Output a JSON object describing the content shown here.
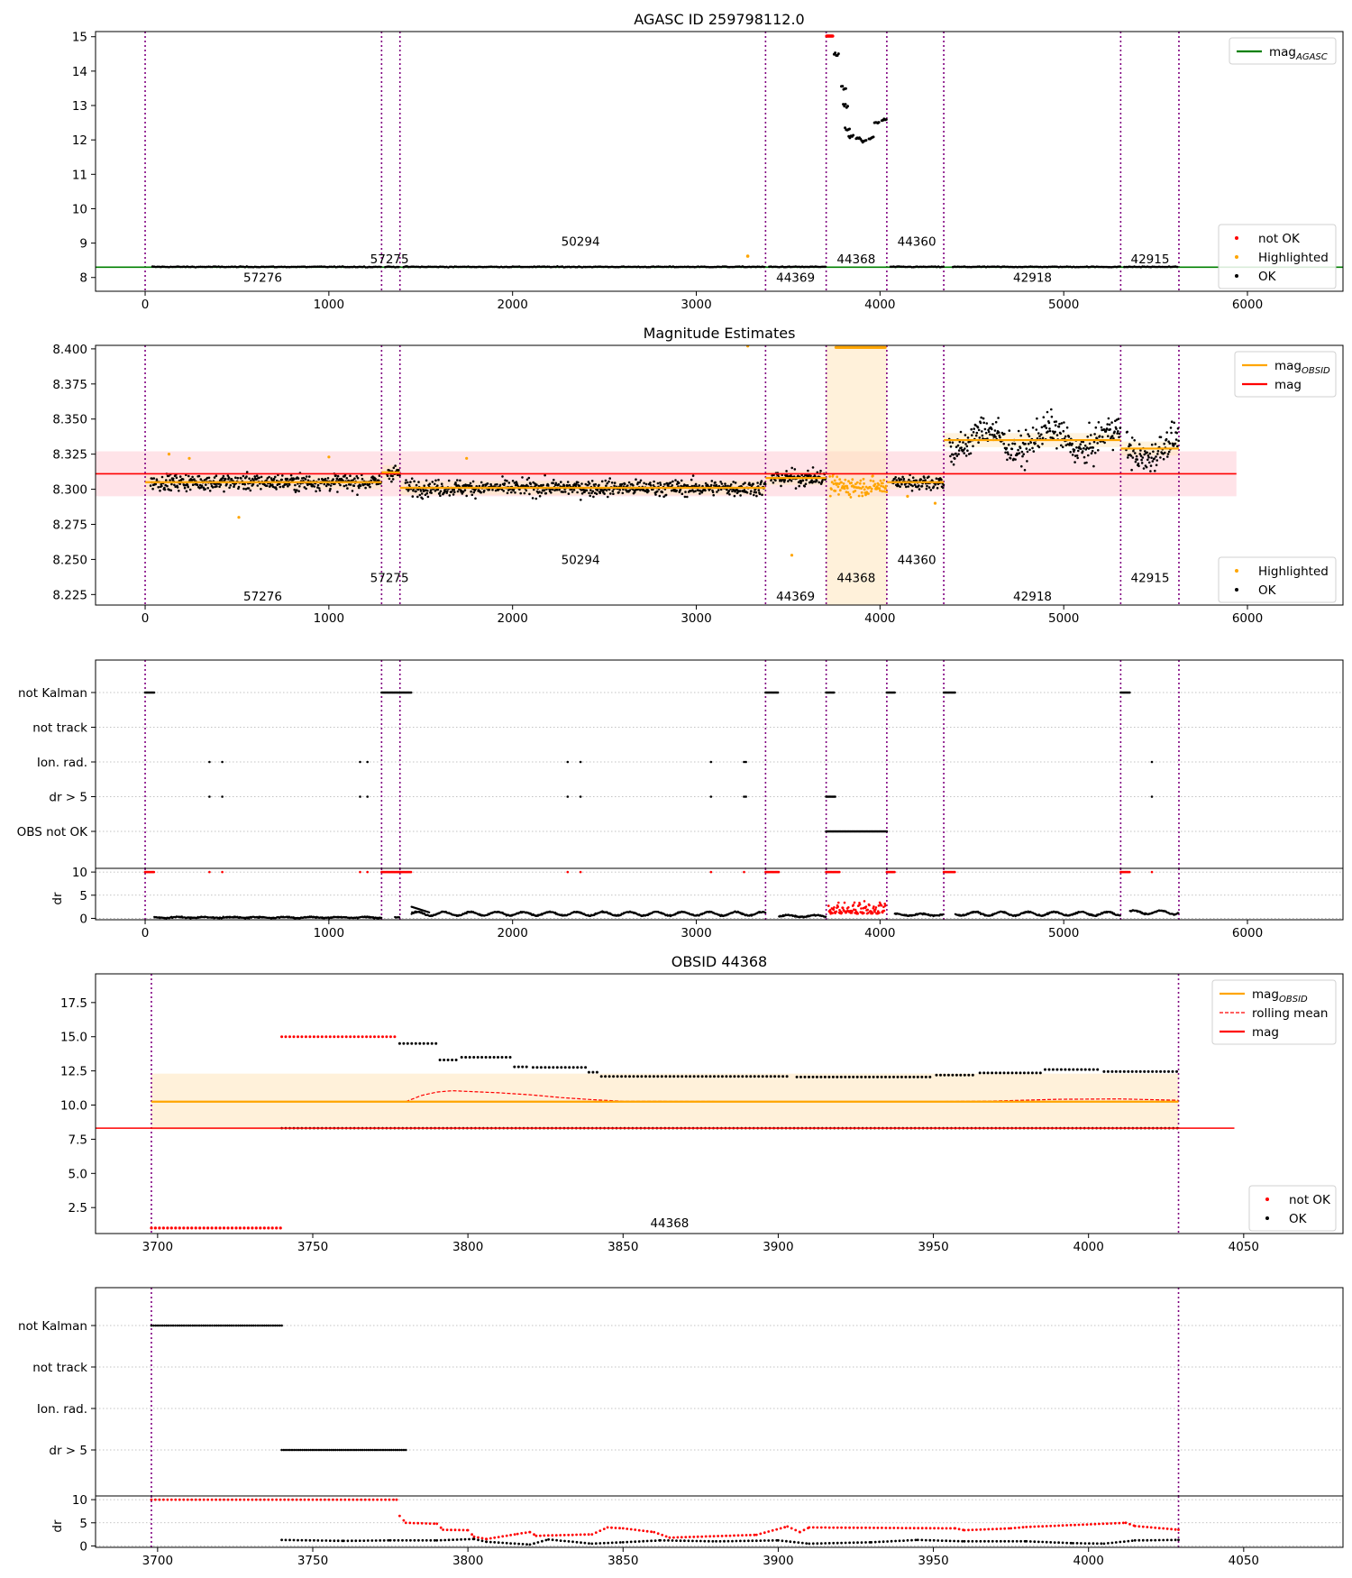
{
  "figure_title": "AGASC ID 259798112.0",
  "colors": {
    "ok": "#000000",
    "not_ok": "#ff0000",
    "highlighted": "#ffa500",
    "mag_agasc": "#008000",
    "mag_obsid": "#ffa500",
    "mag": "#ff0000",
    "rolling_mean": "#ff0000",
    "obs_boundary": "#800080",
    "mag_band": "#ffc0cb",
    "obsid_band": "#ffe4b5"
  },
  "chart_data": [
    {
      "id": "p1",
      "type": "scatter",
      "title": "AGASC ID 259798112.0",
      "xlim": [
        -270,
        6520
      ],
      "ylim": [
        7.6,
        15.15
      ],
      "xticks": [
        0,
        1000,
        2000,
        3000,
        4000,
        5000,
        6000
      ],
      "yticks": [
        8,
        9,
        10,
        11,
        12,
        13,
        14,
        15
      ],
      "obs_boundaries": [
        0,
        1287,
        1387,
        3377,
        3707,
        4037,
        4347,
        5310,
        5627
      ],
      "obsid_labels": [
        {
          "text": "57276",
          "x": 640,
          "y": 8.0
        },
        {
          "text": "57275",
          "x": 1330,
          "y": 8.55
        },
        {
          "text": "50294",
          "x": 2370,
          "y": 9.05
        },
        {
          "text": "44369",
          "x": 3540,
          "y": 8.0
        },
        {
          "text": "44368",
          "x": 3870,
          "y": 8.55
        },
        {
          "text": "44360",
          "x": 4200,
          "y": 9.05
        },
        {
          "text": "42918",
          "x": 4830,
          "y": 8.0
        },
        {
          "text": "42915",
          "x": 5470,
          "y": 8.55
        }
      ],
      "mag_agasc": 8.3,
      "legend_top": [
        {
          "label": "mag",
          "sub": "AGASC",
          "kind": "line",
          "color": "#008000"
        }
      ],
      "legend_bottom": [
        {
          "label": "not OK",
          "kind": "dot",
          "color": "#ff0000"
        },
        {
          "label": "Highlighted",
          "kind": "dot",
          "color": "#ffa500"
        },
        {
          "label": "OK",
          "kind": "dot",
          "color": "#000000"
        }
      ]
    },
    {
      "id": "p2",
      "type": "scatter",
      "title": "Magnitude Estimates",
      "xlim": [
        -270,
        6520
      ],
      "ylim": [
        8.2175,
        8.4025
      ],
      "xticks": [
        0,
        1000,
        2000,
        3000,
        4000,
        5000,
        6000
      ],
      "yticks": [
        8.225,
        8.25,
        8.275,
        8.3,
        8.325,
        8.35,
        8.375,
        8.4
      ],
      "ytick_labels": [
        "8.225",
        "8.250",
        "8.275",
        "8.300",
        "8.325",
        "8.350",
        "8.375",
        "8.400"
      ],
      "obs_boundaries": [
        0,
        1287,
        1387,
        3377,
        3707,
        4037,
        4347,
        5310,
        5627
      ],
      "obsid_labels": [
        {
          "text": "57276",
          "x": 640,
          "y": 8.224
        },
        {
          "text": "57275",
          "x": 1330,
          "y": 8.237
        },
        {
          "text": "50294",
          "x": 2370,
          "y": 8.25
        },
        {
          "text": "44369",
          "x": 3540,
          "y": 8.224
        },
        {
          "text": "44368",
          "x": 3870,
          "y": 8.237
        },
        {
          "text": "44360",
          "x": 4200,
          "y": 8.25
        },
        {
          "text": "42918",
          "x": 4830,
          "y": 8.224
        },
        {
          "text": "42915",
          "x": 5470,
          "y": 8.237
        }
      ],
      "mag": 8.311,
      "mag_band": [
        8.295,
        8.327
      ],
      "mag_xrange": [
        -270,
        5940
      ],
      "mag_obsid_segments": [
        {
          "x0": 0,
          "x1": 1287,
          "y": 8.305
        },
        {
          "x0": 1287,
          "x1": 1387,
          "y": 8.312
        },
        {
          "x0": 1387,
          "x1": 3377,
          "y": 8.301
        },
        {
          "x0": 3377,
          "x1": 3707,
          "y": 8.308
        },
        {
          "x0": 4037,
          "x1": 4347,
          "y": 8.305
        },
        {
          "x0": 4347,
          "x1": 5310,
          "y": 8.335
        },
        {
          "x0": 5310,
          "x1": 5627,
          "y": 8.329
        }
      ],
      "highlight_span": [
        3707,
        4037
      ],
      "legend_top": [
        {
          "label": "mag",
          "sub": "OBSID",
          "kind": "line",
          "color": "#ffa500"
        },
        {
          "label": "mag",
          "kind": "line",
          "color": "#ff0000"
        }
      ],
      "legend_bottom": [
        {
          "label": "Highlighted",
          "kind": "dot",
          "color": "#ffa500"
        },
        {
          "label": "OK",
          "kind": "dot",
          "color": "#000000"
        }
      ]
    },
    {
      "id": "p3",
      "type": "scatter",
      "xlim": [
        -270,
        6520
      ],
      "categories": [
        "not Kalman",
        "not track",
        "Ion. rad.",
        "dr > 5",
        "OBS not OK"
      ],
      "obs_boundaries": [
        0,
        1287,
        1387,
        3377,
        3707,
        4037,
        4347,
        5310,
        5627
      ],
      "flags": {
        "not Kalman": [
          [
            0,
            50
          ],
          [
            1287,
            1387
          ],
          [
            1387,
            1450
          ],
          [
            3377,
            3450
          ],
          [
            3707,
            3750
          ],
          [
            4037,
            4080
          ],
          [
            4347,
            4410
          ],
          [
            5310,
            5360
          ]
        ],
        "Ion. rad.": [
          [
            350
          ],
          [
            420
          ],
          [
            1170
          ],
          [
            1210
          ],
          [
            2300
          ],
          [
            2370
          ],
          [
            3080
          ],
          [
            3260
          ],
          [
            3270
          ],
          [
            5480
          ]
        ],
        "dr > 5": [
          [
            350
          ],
          [
            420
          ],
          [
            1170
          ],
          [
            1210
          ],
          [
            2300
          ],
          [
            2370
          ],
          [
            3080
          ],
          [
            3260
          ],
          [
            3270
          ],
          [
            3707,
            3760
          ],
          [
            5480
          ]
        ],
        "OBS not OK": [
          [
            3707,
            4037
          ]
        ]
      }
    },
    {
      "id": "p4",
      "type": "scatter",
      "xlim": [
        -270,
        6520
      ],
      "ylim": [
        -0.3,
        10.8
      ],
      "xticks": [
        0,
        1000,
        2000,
        3000,
        4000,
        5000,
        6000
      ],
      "yticks": [
        0,
        5,
        10
      ],
      "ylabel": "dr",
      "obs_boundaries": [
        0,
        1287,
        1387,
        3377,
        3707,
        4037,
        4347,
        5310,
        5627
      ]
    },
    {
      "id": "p5",
      "type": "scatter",
      "title": "OBSID 44368",
      "xlim": [
        3680,
        4082
      ],
      "ylim": [
        0.6,
        19.6
      ],
      "xticks": [
        3700,
        3750,
        3800,
        3850,
        3900,
        3950,
        4000,
        4050
      ],
      "yticks": [
        2.5,
        5.0,
        7.5,
        10.0,
        12.5,
        15.0,
        17.5
      ],
      "ytick_labels": [
        "2.5",
        "5.0",
        "7.5",
        "10.0",
        "12.5",
        "15.0",
        "17.5"
      ],
      "obs_boundaries": [
        3698,
        4029
      ],
      "obsid_labels": [
        {
          "text": "44368",
          "x": 3865,
          "y": 1.4
        }
      ],
      "mag": 8.31,
      "mag_xrange": [
        3680,
        4047
      ],
      "mag_obsid": 10.25,
      "mag_obsid_band": [
        8.2,
        12.3
      ],
      "mag_obsid_xrange": [
        3698,
        4029
      ],
      "ok_low": 8.31,
      "not_ok_top": 15.0,
      "not_ok_low": 1.0,
      "estimates": [
        [
          3740,
          15.0
        ],
        [
          3777,
          15.0
        ],
        [
          3778,
          14.5
        ],
        [
          3790,
          14.5
        ],
        [
          3791,
          13.3
        ],
        [
          3797,
          13.3
        ],
        [
          3798,
          13.5
        ],
        [
          3814,
          13.5
        ],
        [
          3815,
          12.8
        ],
        [
          3820,
          12.8
        ],
        [
          3821,
          12.75
        ],
        [
          3838,
          12.75
        ],
        [
          3839,
          12.4
        ],
        [
          3842,
          12.4
        ],
        [
          3843,
          12.1
        ],
        [
          3903,
          12.1
        ],
        [
          3904,
          11.9
        ],
        [
          3906,
          12.05
        ],
        [
          3950,
          12.05
        ],
        [
          3951,
          12.2
        ],
        [
          3964,
          12.2
        ],
        [
          3965,
          12.35
        ],
        [
          3985,
          12.35
        ],
        [
          3986,
          12.6
        ],
        [
          4004,
          12.6
        ],
        [
          4005,
          12.45
        ],
        [
          4029,
          12.45
        ]
      ],
      "rolling_mean": [
        [
          3780,
          10.25
        ],
        [
          3785,
          10.7
        ],
        [
          3790,
          10.95
        ],
        [
          3795,
          11.05
        ],
        [
          3800,
          11.0
        ],
        [
          3810,
          10.9
        ],
        [
          3820,
          10.75
        ],
        [
          3830,
          10.55
        ],
        [
          3840,
          10.4
        ],
        [
          3850,
          10.28
        ],
        [
          3900,
          10.25
        ],
        [
          3950,
          10.25
        ],
        [
          3970,
          10.3
        ],
        [
          3990,
          10.42
        ],
        [
          4010,
          10.45
        ],
        [
          4020,
          10.4
        ],
        [
          4029,
          10.35
        ]
      ],
      "legend_top": [
        {
          "label": "mag",
          "sub": "OBSID",
          "kind": "line",
          "color": "#ffa500"
        },
        {
          "label": "rolling mean",
          "kind": "dash",
          "color": "#ff0000"
        },
        {
          "label": "mag",
          "kind": "line",
          "color": "#ff0000"
        }
      ],
      "legend_bottom": [
        {
          "label": "not OK",
          "kind": "dot",
          "color": "#ff0000"
        },
        {
          "label": "OK",
          "kind": "dot",
          "color": "#000000"
        }
      ]
    },
    {
      "id": "p6",
      "type": "scatter",
      "xlim": [
        3680,
        4082
      ],
      "categories": [
        "not Kalman",
        "not track",
        "Ion. rad.",
        "dr > 5"
      ],
      "obs_boundaries": [
        3698,
        4029
      ],
      "flags": {
        "not Kalman": [
          [
            3698,
            3740
          ]
        ],
        "dr > 5": [
          [
            3740,
            3780
          ]
        ]
      }
    },
    {
      "id": "p7",
      "type": "scatter",
      "xlim": [
        3680,
        4082
      ],
      "ylim": [
        -0.3,
        10.8
      ],
      "xticks": [
        3700,
        3750,
        3800,
        3850,
        3900,
        3950,
        4000,
        4050
      ],
      "yticks": [
        0,
        5,
        10
      ],
      "ylabel": "dr",
      "obs_boundaries": [
        3698,
        4029
      ],
      "red_dr": [
        [
          3698,
          10
        ],
        [
          3777,
          10
        ],
        [
          3778,
          6.5
        ],
        [
          3780,
          5.0
        ],
        [
          3790,
          4.8
        ],
        [
          3792,
          3.5
        ],
        [
          3800,
          3.4
        ],
        [
          3802,
          2.0
        ],
        [
          3806,
          1.5
        ],
        [
          3816,
          2.6
        ],
        [
          3820,
          3.0
        ],
        [
          3822,
          2.2
        ],
        [
          3840,
          2.5
        ],
        [
          3845,
          4.0
        ],
        [
          3850,
          3.8
        ],
        [
          3860,
          3.0
        ],
        [
          3865,
          1.8
        ],
        [
          3893,
          2.4
        ],
        [
          3903,
          4.2
        ],
        [
          3907,
          3.0
        ],
        [
          3910,
          4.0
        ],
        [
          3957,
          3.8
        ],
        [
          3960,
          3.4
        ],
        [
          3975,
          3.8
        ],
        [
          3980,
          4.1
        ],
        [
          4012,
          5.0
        ],
        [
          4015,
          4.3
        ],
        [
          4029,
          3.5
        ]
      ],
      "black_dr": [
        [
          3740,
          1.3
        ],
        [
          3760,
          1.1
        ],
        [
          3775,
          1.2
        ],
        [
          3790,
          1.2
        ],
        [
          3802,
          1.5
        ],
        [
          3806,
          0.9
        ],
        [
          3820,
          0.3
        ],
        [
          3826,
          1.4
        ],
        [
          3840,
          0.5
        ],
        [
          3850,
          0.8
        ],
        [
          3862,
          1.2
        ],
        [
          3880,
          1.0
        ],
        [
          3900,
          1.2
        ],
        [
          3910,
          0.5
        ],
        [
          3930,
          0.8
        ],
        [
          3945,
          1.3
        ],
        [
          3960,
          1.0
        ],
        [
          3980,
          1.0
        ],
        [
          3995,
          0.6
        ],
        [
          4005,
          0.5
        ],
        [
          4015,
          1.2
        ],
        [
          4029,
          1.3
        ]
      ]
    }
  ]
}
